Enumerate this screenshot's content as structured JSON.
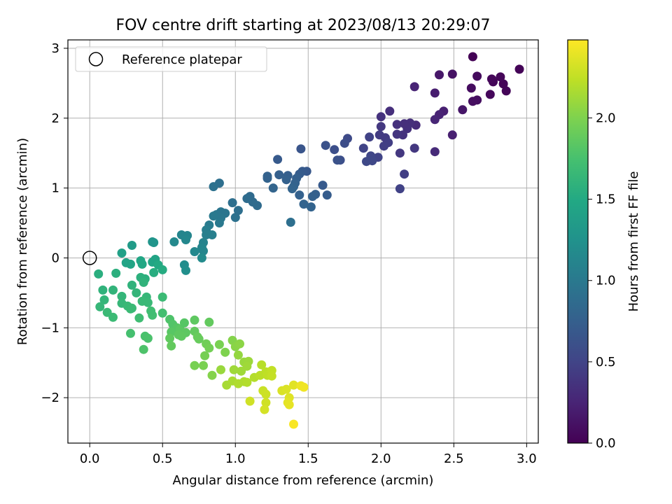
{
  "chart_data": {
    "type": "scatter",
    "title": "FOV centre drift starting at 2023/08/13 20:29:07",
    "xlabel": "Angular distance from reference (arcmin)",
    "ylabel": "Rotation from reference (arcmin)",
    "xlim": [
      -0.15,
      3.08
    ],
    "ylim": [
      -2.65,
      3.12
    ],
    "x_ticks": [
      0.0,
      0.5,
      1.0,
      1.5,
      2.0,
      2.5,
      3.0
    ],
    "x_tick_labels": [
      "0.0",
      "0.5",
      "1.0",
      "1.5",
      "2.0",
      "2.5",
      "3.0"
    ],
    "y_ticks": [
      -2,
      -1,
      0,
      1,
      2,
      3
    ],
    "y_tick_labels": [
      "−2",
      "−1",
      "0",
      "1",
      "2",
      "3"
    ],
    "grid": true,
    "legend": {
      "placement": "top-left",
      "entries": [
        "Reference platepar"
      ]
    },
    "reference_point": {
      "x": 0.0,
      "y": 0.0,
      "label": "Reference platepar"
    },
    "colorbar": {
      "label": "Hours from first FF file",
      "colormap": "viridis",
      "range": [
        0.0,
        2.48
      ],
      "ticks": [
        0.0,
        0.5,
        1.0,
        1.5,
        2.0
      ],
      "tick_labels": [
        "0.0",
        "0.5",
        "1.0",
        "1.5",
        "2.0"
      ]
    },
    "points": [
      [
        2.95,
        2.7,
        0.02
      ],
      [
        2.86,
        2.39,
        0.03
      ],
      [
        2.84,
        2.49,
        0.02
      ],
      [
        2.82,
        2.59,
        0.04
      ],
      [
        2.77,
        2.52,
        0.03
      ],
      [
        2.75,
        2.34,
        0.05
      ],
      [
        2.76,
        2.56,
        0.04
      ],
      [
        2.63,
        2.88,
        0.01
      ],
      [
        2.66,
        2.6,
        0.07
      ],
      [
        2.66,
        2.26,
        0.09
      ],
      [
        2.63,
        2.24,
        0.1
      ],
      [
        2.62,
        2.43,
        0.08
      ],
      [
        2.56,
        2.12,
        0.15
      ],
      [
        2.49,
        2.63,
        0.12
      ],
      [
        2.4,
        2.62,
        0.16
      ],
      [
        2.43,
        2.1,
        0.22
      ],
      [
        2.4,
        2.05,
        0.24
      ],
      [
        2.37,
        2.36,
        0.2
      ],
      [
        2.37,
        1.98,
        0.26
      ],
      [
        2.49,
        1.76,
        0.22
      ],
      [
        2.37,
        1.52,
        0.3
      ],
      [
        2.23,
        2.45,
        0.25
      ],
      [
        2.24,
        1.9,
        0.3
      ],
      [
        2.2,
        1.93,
        0.33
      ],
      [
        2.18,
        1.85,
        0.34
      ],
      [
        2.15,
        1.76,
        0.36
      ],
      [
        2.16,
        1.92,
        0.33
      ],
      [
        2.11,
        1.91,
        0.35
      ],
      [
        2.11,
        1.77,
        0.38
      ],
      [
        2.13,
        1.5,
        0.4
      ],
      [
        2.23,
        1.57,
        0.4
      ],
      [
        2.16,
        1.2,
        0.45
      ],
      [
        2.13,
        0.99,
        0.48
      ],
      [
        2.06,
        2.1,
        0.33
      ],
      [
        2.0,
        2.02,
        0.36
      ],
      [
        2.0,
        1.88,
        0.4
      ],
      [
        1.99,
        1.76,
        0.43
      ],
      [
        2.03,
        1.72,
        0.43
      ],
      [
        2.05,
        1.65,
        0.45
      ],
      [
        2.02,
        1.6,
        0.46
      ],
      [
        1.98,
        1.44,
        0.5
      ],
      [
        1.93,
        1.46,
        0.52
      ],
      [
        1.94,
        1.39,
        0.53
      ],
      [
        1.9,
        1.38,
        0.54
      ],
      [
        1.88,
        1.57,
        0.5
      ],
      [
        1.92,
        1.73,
        0.48
      ],
      [
        1.77,
        1.71,
        0.55
      ],
      [
        1.75,
        1.64,
        0.58
      ],
      [
        1.72,
        1.4,
        0.6
      ],
      [
        1.7,
        1.4,
        0.62
      ],
      [
        1.68,
        1.55,
        0.6
      ],
      [
        1.62,
        1.61,
        0.62
      ],
      [
        1.6,
        1.04,
        0.7
      ],
      [
        1.63,
        0.9,
        0.72
      ],
      [
        1.55,
        0.91,
        0.75
      ],
      [
        1.53,
        0.88,
        0.76
      ],
      [
        1.52,
        0.73,
        0.78
      ],
      [
        1.47,
        0.77,
        0.78
      ],
      [
        1.44,
        0.9,
        0.76
      ],
      [
        1.49,
        1.24,
        0.68
      ],
      [
        1.46,
        1.24,
        0.7
      ],
      [
        1.44,
        1.2,
        0.72
      ],
      [
        1.45,
        1.56,
        0.65
      ],
      [
        1.42,
        1.14,
        0.75
      ],
      [
        1.41,
        1.07,
        0.77
      ],
      [
        1.4,
        1.02,
        0.78
      ],
      [
        1.39,
        0.99,
        0.79
      ],
      [
        1.36,
        1.18,
        0.74
      ],
      [
        1.35,
        1.12,
        0.76
      ],
      [
        1.3,
        1.19,
        0.75
      ],
      [
        1.29,
        1.41,
        0.7
      ],
      [
        1.26,
        1.0,
        0.8
      ],
      [
        1.22,
        1.14,
        0.78
      ],
      [
        1.22,
        1.17,
        0.77
      ],
      [
        1.38,
        0.51,
        0.9
      ],
      [
        1.15,
        0.75,
        0.86
      ],
      [
        1.12,
        0.8,
        0.86
      ],
      [
        1.1,
        0.88,
        0.85
      ],
      [
        1.08,
        0.85,
        0.87
      ],
      [
        1.0,
        0.58,
        0.92
      ],
      [
        1.02,
        0.68,
        0.9
      ],
      [
        0.98,
        0.79,
        0.9
      ],
      [
        0.93,
        0.64,
        0.96
      ],
      [
        0.9,
        0.66,
        0.96
      ],
      [
        0.9,
        0.57,
        0.98
      ],
      [
        0.89,
        0.5,
        1.0
      ],
      [
        0.87,
        0.62,
        0.98
      ],
      [
        0.85,
        0.6,
        1.0
      ],
      [
        0.82,
        0.47,
        1.02
      ],
      [
        0.89,
        1.07,
        0.9
      ],
      [
        0.85,
        1.02,
        0.92
      ],
      [
        0.8,
        0.4,
        1.05
      ],
      [
        0.8,
        0.33,
        1.06
      ],
      [
        0.84,
        0.33,
        1.06
      ],
      [
        0.78,
        0.22,
        1.1
      ],
      [
        0.77,
        0.15,
        1.12
      ],
      [
        0.78,
        0.1,
        1.13
      ],
      [
        0.72,
        0.09,
        1.15
      ],
      [
        0.67,
        0.32,
        1.12
      ],
      [
        0.63,
        0.33,
        1.12
      ],
      [
        0.66,
        0.26,
        1.14
      ],
      [
        0.58,
        0.23,
        1.16
      ],
      [
        0.65,
        -0.1,
        1.2
      ],
      [
        0.66,
        -0.18,
        1.22
      ],
      [
        0.77,
        0.0,
        1.18
      ],
      [
        0.44,
        0.22,
        1.28
      ],
      [
        0.43,
        0.23,
        1.28
      ],
      [
        0.29,
        0.18,
        1.35
      ],
      [
        0.22,
        0.07,
        1.4
      ],
      [
        0.25,
        -0.07,
        1.44
      ],
      [
        0.28,
        -0.09,
        1.45
      ],
      [
        0.35,
        -0.04,
        1.47
      ],
      [
        0.36,
        -0.09,
        1.48
      ],
      [
        0.43,
        -0.06,
        1.46
      ],
      [
        0.45,
        -0.02,
        1.45
      ],
      [
        0.47,
        -0.1,
        1.5
      ],
      [
        0.5,
        -0.17,
        1.52
      ],
      [
        0.44,
        -0.21,
        1.54
      ],
      [
        0.38,
        -0.3,
        1.56
      ],
      [
        0.35,
        -0.28,
        1.57
      ],
      [
        0.32,
        -0.5,
        1.62
      ],
      [
        0.29,
        -0.39,
        1.6
      ],
      [
        0.37,
        -0.35,
        1.6
      ],
      [
        0.39,
        -0.56,
        1.64
      ],
      [
        0.4,
        -0.64,
        1.66
      ],
      [
        0.36,
        -0.62,
        1.66
      ],
      [
        0.34,
        -0.86,
        1.7
      ],
      [
        0.43,
        -0.82,
        1.72
      ],
      [
        0.42,
        -0.76,
        1.71
      ],
      [
        0.5,
        -0.56,
        1.68
      ],
      [
        0.5,
        -0.79,
        1.73
      ],
      [
        0.06,
        -0.23,
        1.55
      ],
      [
        0.18,
        -0.22,
        1.56
      ],
      [
        0.09,
        -0.46,
        1.6
      ],
      [
        0.16,
        -0.46,
        1.61
      ],
      [
        0.1,
        -0.6,
        1.63
      ],
      [
        0.07,
        -0.7,
        1.64
      ],
      [
        0.12,
        -0.78,
        1.67
      ],
      [
        0.16,
        -0.85,
        1.68
      ],
      [
        0.22,
        -0.55,
        1.63
      ],
      [
        0.22,
        -0.65,
        1.64
      ],
      [
        0.26,
        -0.69,
        1.66
      ],
      [
        0.28,
        -0.73,
        1.67
      ],
      [
        0.29,
        -0.72,
        1.67
      ],
      [
        0.28,
        -1.08,
        1.74
      ],
      [
        0.38,
        -1.12,
        1.76
      ],
      [
        0.4,
        -1.15,
        1.77
      ],
      [
        0.37,
        -1.31,
        1.78
      ],
      [
        0.55,
        -0.88,
        1.78
      ],
      [
        0.57,
        -0.95,
        1.8
      ],
      [
        0.6,
        -1.0,
        1.82
      ],
      [
        0.56,
        -1.06,
        1.83
      ],
      [
        0.62,
        -1.02,
        1.84
      ],
      [
        0.65,
        -0.93,
        1.82
      ],
      [
        0.66,
        -1.07,
        1.85
      ],
      [
        0.63,
        -1.12,
        1.86
      ],
      [
        0.61,
        -1.1,
        1.86
      ],
      [
        0.55,
        -1.15,
        1.87
      ],
      [
        0.56,
        -1.26,
        1.88
      ],
      [
        0.72,
        -1.05,
        1.88
      ],
      [
        0.74,
        -1.13,
        1.9
      ],
      [
        0.72,
        -0.89,
        1.86
      ],
      [
        0.75,
        -1.16,
        1.9
      ],
      [
        0.82,
        -0.92,
        1.88
      ],
      [
        0.8,
        -1.23,
        1.94
      ],
      [
        0.82,
        -1.29,
        1.95
      ],
      [
        0.79,
        -1.4,
        1.96
      ],
      [
        0.72,
        -1.54,
        1.97
      ],
      [
        0.78,
        -1.54,
        1.98
      ],
      [
        0.84,
        -1.68,
        2.02
      ],
      [
        0.89,
        -1.24,
        1.98
      ],
      [
        0.93,
        -1.35,
        2.0
      ],
      [
        0.98,
        -1.18,
        2.02
      ],
      [
        1.0,
        -1.27,
        2.04
      ],
      [
        1.03,
        -1.23,
        2.05
      ],
      [
        1.02,
        -1.39,
        2.08
      ],
      [
        1.06,
        -1.49,
        2.1
      ],
      [
        1.09,
        -1.48,
        2.11
      ],
      [
        1.08,
        -1.55,
        2.12
      ],
      [
        1.04,
        -1.62,
        2.12
      ],
      [
        0.99,
        -1.6,
        2.12
      ],
      [
        0.9,
        -1.6,
        2.1
      ],
      [
        0.94,
        -1.82,
        2.15
      ],
      [
        0.98,
        -1.76,
        2.16
      ],
      [
        1.02,
        -1.8,
        2.18
      ],
      [
        1.06,
        -1.77,
        2.18
      ],
      [
        1.08,
        -1.78,
        2.19
      ],
      [
        1.13,
        -1.71,
        2.2
      ],
      [
        1.17,
        -1.68,
        2.22
      ],
      [
        1.18,
        -1.53,
        2.21
      ],
      [
        1.21,
        -1.63,
        2.23
      ],
      [
        1.22,
        -1.68,
        2.24
      ],
      [
        1.25,
        -1.61,
        2.25
      ],
      [
        1.25,
        -1.69,
        2.26
      ],
      [
        1.19,
        -1.9,
        2.28
      ],
      [
        1.21,
        -1.95,
        2.29
      ],
      [
        1.21,
        -2.07,
        2.3
      ],
      [
        1.2,
        -2.17,
        2.32
      ],
      [
        1.1,
        -2.05,
        2.3
      ],
      [
        1.32,
        -1.9,
        2.34
      ],
      [
        1.35,
        -1.88,
        2.35
      ],
      [
        1.37,
        -2.0,
        2.36
      ],
      [
        1.4,
        -1.82,
        2.37
      ],
      [
        1.36,
        -2.07,
        2.38
      ],
      [
        1.37,
        -2.1,
        2.39
      ],
      [
        1.45,
        -1.83,
        2.42
      ],
      [
        1.47,
        -1.85,
        2.43
      ],
      [
        1.4,
        -2.38,
        2.46
      ]
    ]
  }
}
